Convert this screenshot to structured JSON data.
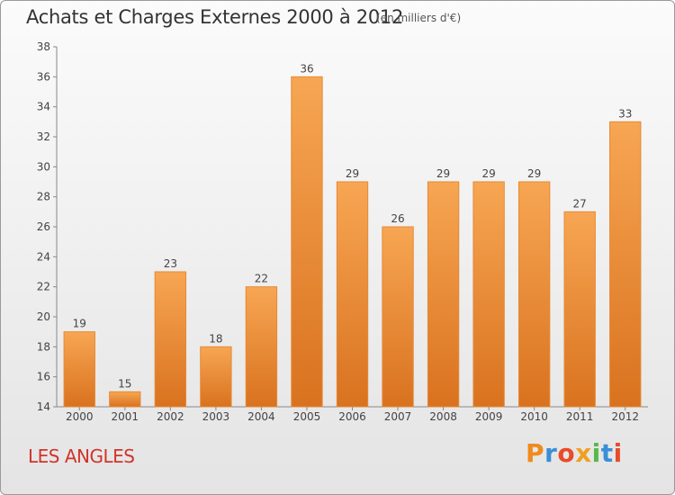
{
  "header": {
    "title": "Achats et Charges Externes 2000 à 2012",
    "unit_note": "(en milliers d'€)"
  },
  "footer": {
    "location": "LES ANGLES",
    "logo_text": "Proxiti",
    "logo_colors": [
      "#f08a1c",
      "#3a8fd6",
      "#e94b2a",
      "#f0a020",
      "#58b947",
      "#3a8fd6",
      "#e94b2a"
    ]
  },
  "colors": {
    "bar_top": "#f7a653",
    "bar_bottom": "#d9721f",
    "bar_edge": "#e58a36",
    "axis": "#888888",
    "grid": "#cccccc"
  },
  "chart_data": {
    "type": "bar",
    "title": "Achats et Charges Externes 2000 à 2012",
    "subtitle": "(en milliers d'€)",
    "categories": [
      "2000",
      "2001",
      "2002",
      "2003",
      "2004",
      "2005",
      "2006",
      "2007",
      "2008",
      "2009",
      "2010",
      "2011",
      "2012"
    ],
    "values": [
      19,
      15,
      23,
      18,
      22,
      36,
      29,
      26,
      29,
      29,
      29,
      27,
      33
    ],
    "ylim": [
      14,
      38
    ],
    "yticks": [
      14,
      16,
      18,
      20,
      22,
      24,
      26,
      28,
      30,
      32,
      34,
      36,
      38
    ],
    "grid": false,
    "data_labels": true,
    "xlabel": "",
    "ylabel": ""
  }
}
